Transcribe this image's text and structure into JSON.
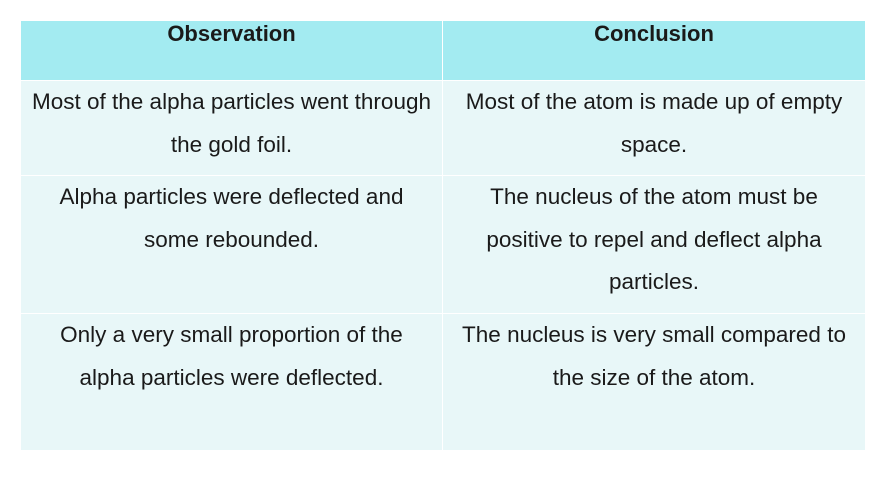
{
  "table": {
    "headers": [
      "Observation",
      "Conclusion"
    ],
    "rows": [
      {
        "observation": "Most of the alpha particles went through the gold foil.",
        "conclusion": "Most of the atom is made up of empty space."
      },
      {
        "observation": "Alpha particles were deflected and some rebounded.",
        "conclusion": "The nucleus of the atom must be positive to repel and deflect alpha particles."
      },
      {
        "observation": "Only a very small proportion of the alpha particles were deflected.",
        "conclusion": "The nucleus is very small compared to the size of the atom."
      }
    ],
    "colors": {
      "header_bg": "#a3ebf1",
      "body_bg": "#e8f7f8",
      "border": "#ffffff"
    }
  }
}
